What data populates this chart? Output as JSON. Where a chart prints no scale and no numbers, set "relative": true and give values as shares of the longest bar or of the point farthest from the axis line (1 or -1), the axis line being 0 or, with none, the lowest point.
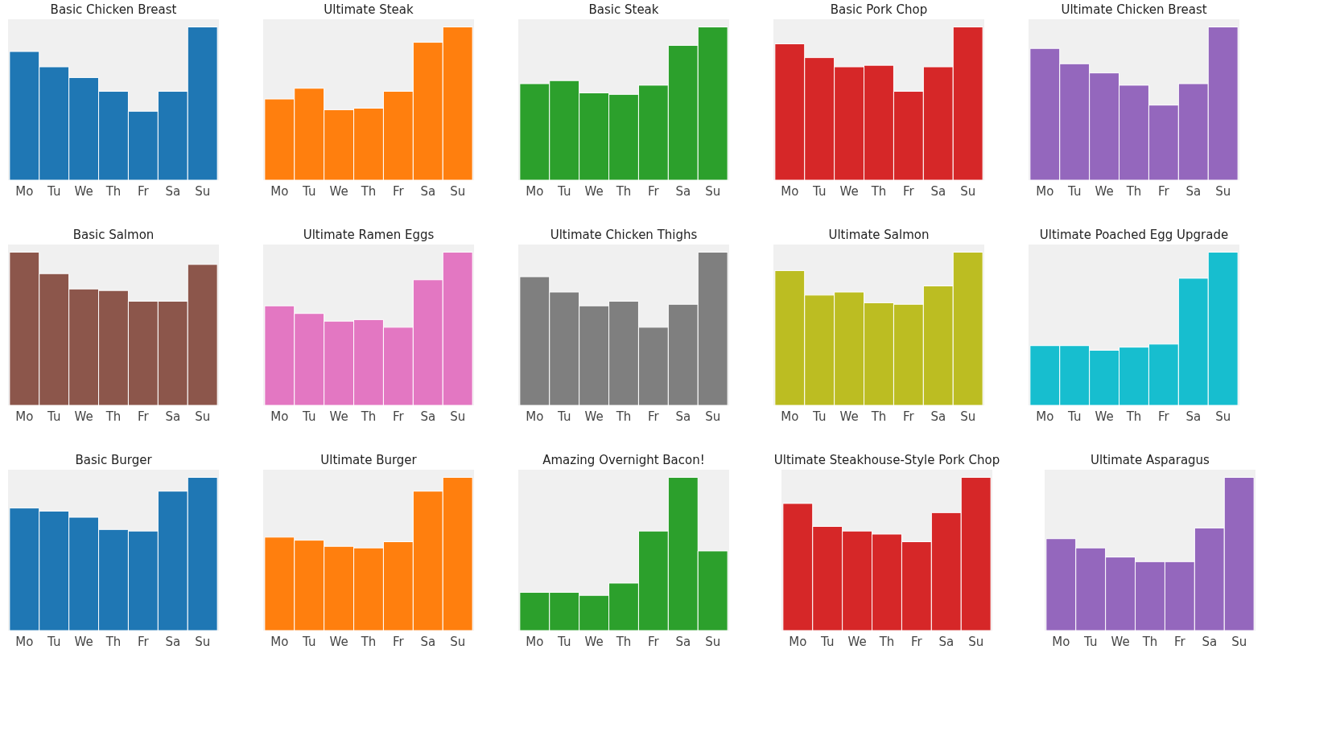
{
  "chart_data": [
    {
      "type": "bar",
      "title": "Basic Chicken Breast",
      "categories": [
        "Mo",
        "Tu",
        "We",
        "Th",
        "Fr",
        "Sa",
        "Su"
      ],
      "values": [
        0.84,
        0.74,
        0.67,
        0.58,
        0.45,
        0.58,
        1
      ],
      "color": "#1f77b4",
      "relative": true
    },
    {
      "type": "bar",
      "title": "Ultimate Steak",
      "categories": [
        "Mo",
        "Tu",
        "We",
        "Th",
        "Fr",
        "Sa",
        "Su"
      ],
      "values": [
        0.53,
        0.6,
        0.46,
        0.47,
        0.58,
        0.9,
        1
      ],
      "color": "#ff7f0e",
      "relative": true
    },
    {
      "type": "bar",
      "title": "Basic Steak",
      "categories": [
        "Mo",
        "Tu",
        "We",
        "Th",
        "Fr",
        "Sa",
        "Su"
      ],
      "values": [
        0.63,
        0.65,
        0.57,
        0.56,
        0.62,
        0.88,
        1
      ],
      "color": "#2ca02c",
      "relative": true
    },
    {
      "type": "bar",
      "title": "Basic Pork Chop",
      "categories": [
        "Mo",
        "Tu",
        "We",
        "Th",
        "Fr",
        "Sa",
        "Su"
      ],
      "values": [
        0.89,
        0.8,
        0.74,
        0.75,
        0.58,
        0.74,
        1
      ],
      "color": "#d62728",
      "relative": true
    },
    {
      "type": "bar",
      "title": "Ultimate Chicken Breast",
      "categories": [
        "Mo",
        "Tu",
        "We",
        "Th",
        "Fr",
        "Sa",
        "Su"
      ],
      "values": [
        0.86,
        0.76,
        0.7,
        0.62,
        0.49,
        0.63,
        1
      ],
      "color": "#9467bd",
      "relative": true
    },
    {
      "type": "bar",
      "title": "Basic Salmon",
      "categories": [
        "Mo",
        "Tu",
        "We",
        "Th",
        "Fr",
        "Sa",
        "Su"
      ],
      "values": [
        1,
        0.86,
        0.76,
        0.75,
        0.68,
        0.68,
        0.92
      ],
      "color": "#8c564b",
      "relative": true
    },
    {
      "type": "bar",
      "title": "Ultimate Ramen Eggs",
      "categories": [
        "Mo",
        "Tu",
        "We",
        "Th",
        "Fr",
        "Sa",
        "Su"
      ],
      "values": [
        0.65,
        0.6,
        0.55,
        0.56,
        0.51,
        0.82,
        1
      ],
      "color": "#e377c2",
      "relative": true
    },
    {
      "type": "bar",
      "title": "Ultimate Chicken Thighs",
      "categories": [
        "Mo",
        "Tu",
        "We",
        "Th",
        "Fr",
        "Sa",
        "Su"
      ],
      "values": [
        0.84,
        0.74,
        0.65,
        0.68,
        0.51,
        0.66,
        1
      ],
      "color": "#7f7f7f",
      "relative": true
    },
    {
      "type": "bar",
      "title": "Ultimate Salmon",
      "categories": [
        "Mo",
        "Tu",
        "We",
        "Th",
        "Fr",
        "Sa",
        "Su"
      ],
      "values": [
        0.88,
        0.72,
        0.74,
        0.67,
        0.66,
        0.78,
        1
      ],
      "color": "#bcbd22",
      "relative": true
    },
    {
      "type": "bar",
      "title": "Ultimate Poached Egg Upgrade",
      "categories": [
        "Mo",
        "Tu",
        "We",
        "Th",
        "Fr",
        "Sa",
        "Su"
      ],
      "values": [
        0.39,
        0.39,
        0.36,
        0.38,
        0.4,
        0.83,
        1
      ],
      "color": "#17becf",
      "relative": true
    },
    {
      "type": "bar",
      "title": "Basic Burger",
      "categories": [
        "Mo",
        "Tu",
        "We",
        "Th",
        "Fr",
        "Sa",
        "Su"
      ],
      "values": [
        0.8,
        0.78,
        0.74,
        0.66,
        0.65,
        0.91,
        1
      ],
      "color": "#1f77b4",
      "relative": true
    },
    {
      "type": "bar",
      "title": "Ultimate Burger",
      "categories": [
        "Mo",
        "Tu",
        "We",
        "Th",
        "Fr",
        "Sa",
        "Su"
      ],
      "values": [
        0.61,
        0.59,
        0.55,
        0.54,
        0.58,
        0.91,
        1
      ],
      "color": "#ff7f0e",
      "relative": true
    },
    {
      "type": "bar",
      "title": "Amazing Overnight Bacon!",
      "categories": [
        "Mo",
        "Tu",
        "We",
        "Th",
        "Fr",
        "Sa",
        "Su"
      ],
      "values": [
        0.25,
        0.25,
        0.23,
        0.31,
        0.65,
        1,
        0.52
      ],
      "color": "#2ca02c",
      "relative": true
    },
    {
      "type": "bar",
      "title": "Ultimate Steakhouse-Style Pork Chop",
      "categories": [
        "Mo",
        "Tu",
        "We",
        "Th",
        "Fr",
        "Sa",
        "Su"
      ],
      "values": [
        0.83,
        0.68,
        0.65,
        0.63,
        0.58,
        0.77,
        1
      ],
      "color": "#d62728",
      "relative": true
    },
    {
      "type": "bar",
      "title": "Ultimate Asparagus",
      "categories": [
        "Mo",
        "Tu",
        "We",
        "Th",
        "Fr",
        "Sa",
        "Su"
      ],
      "values": [
        0.6,
        0.54,
        0.48,
        0.45,
        0.45,
        0.67,
        1
      ],
      "color": "#9467bd",
      "relative": true
    }
  ]
}
